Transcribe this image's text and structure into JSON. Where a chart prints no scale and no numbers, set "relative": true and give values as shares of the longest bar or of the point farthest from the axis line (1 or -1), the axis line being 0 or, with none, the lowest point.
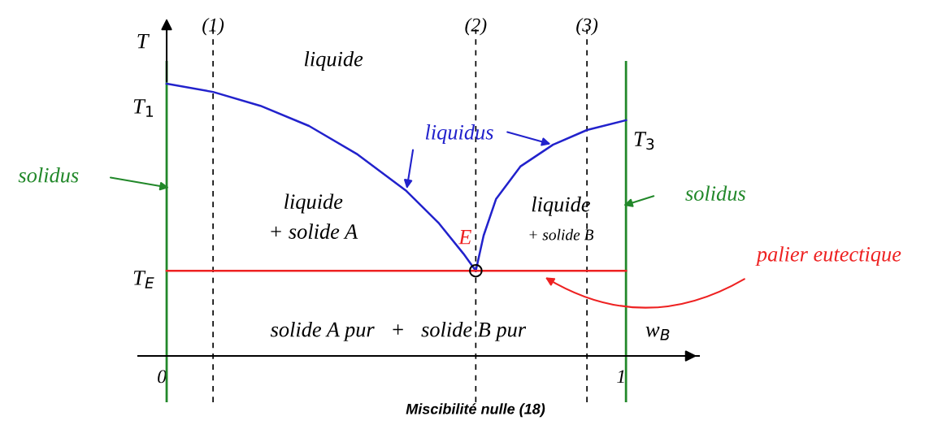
{
  "chart_data": {
    "type": "line",
    "title": "Miscibilité nulle (18)",
    "xlabel": "w$_{B}$",
    "ylabel": "T",
    "relative": true,
    "xlim": [
      -0.062,
      1.159
    ],
    "xticks": [
      0,
      1
    ],
    "grid": false,
    "legend": false,
    "series": [
      {
        "color": "#2222cc",
        "x": [
          0,
          0.101,
          0.204,
          0.31,
          0.416,
          0.522,
          0.593,
          0.646,
          0.673
        ],
        "values": [
          1.0,
          0.97,
          0.919,
          0.845,
          0.74,
          0.606,
          0.487,
          0.376,
          0.313
        ]
      },
      {
        "color": "#2222cc",
        "x": [
          0.673,
          0.69,
          0.717,
          0.77,
          0.841,
          0.915,
          1.0
        ],
        "values": [
          0.313,
          0.442,
          0.576,
          0.696,
          0.776,
          0.83,
          0.866
        ]
      },
      {
        "color": "#ee2222",
        "x": [
          0,
          1
        ],
        "values": [
          0.313,
          0.313
        ]
      },
      {
        "type": "scatter",
        "marker": "circle",
        "color": "#000000",
        "x": [
          0.673
        ],
        "values": [
          0.313
        ]
      }
    ],
    "ref_lines": [
      {
        "axis": "x",
        "value": 0,
        "color": "#22882a",
        "line_style": "solid"
      },
      {
        "axis": "x",
        "value": 1,
        "color": "#22882a",
        "line_style": "solid"
      },
      {
        "axis": "x",
        "value": 0.101,
        "color": "#000000",
        "line_style": "dashed"
      },
      {
        "axis": "x",
        "value": 0.673,
        "color": "#000000",
        "line_style": "dashed"
      },
      {
        "axis": "x",
        "value": 0.915,
        "color": "#000000",
        "line_style": "dashed"
      }
    ],
    "annotations": [
      "liquide",
      "liquidus",
      "liquide",
      "+ solide A",
      "E",
      "liquide",
      "+ solide B",
      "solidus",
      "solidus",
      "palier eutectique",
      "solide A pur   +   solide B pur",
      "T$_{1}$",
      "T$_{E}$",
      "T$_{3}$",
      "(1)",
      "(2)",
      "(3)"
    ]
  }
}
